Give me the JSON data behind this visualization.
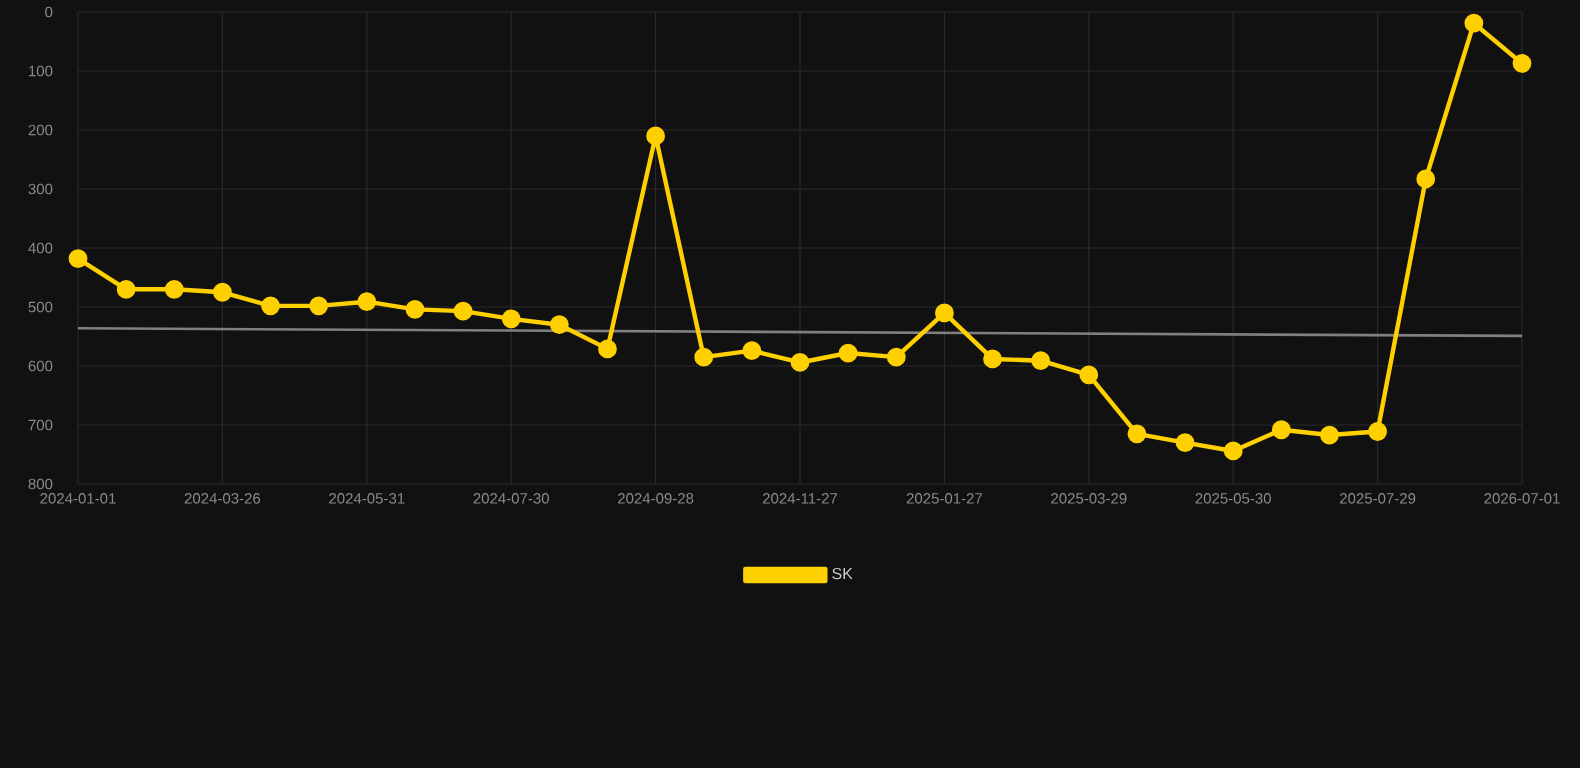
{
  "chart_data": {
    "type": "line",
    "categories": [
      "2024-01-01",
      null,
      null,
      "2024-03-26",
      null,
      null,
      "2024-05-31",
      null,
      null,
      "2024-07-30",
      null,
      null,
      "2024-09-28",
      null,
      null,
      "2024-11-27",
      null,
      null,
      "2025-01-27",
      null,
      null,
      "2025-03-29",
      null,
      null,
      "2025-05-30",
      null,
      null,
      "2025-07-29",
      null,
      null,
      "2026-07-01"
    ],
    "series": [
      {
        "name": "SK",
        "color": "#ffd000",
        "marker": "circle",
        "values": [
          418,
          470,
          470,
          475,
          498,
          498,
          491,
          504,
          507,
          520,
          530,
          571,
          210,
          585,
          574,
          594,
          578,
          585,
          510,
          588,
          591,
          615,
          715,
          730,
          744,
          708,
          717,
          711,
          283,
          19,
          87
        ]
      },
      {
        "type": "line",
        "color": "#808080",
        "marker": "none",
        "values": [
          536,
          null,
          null,
          null,
          null,
          null,
          null,
          null,
          null,
          null,
          null,
          null,
          null,
          null,
          null,
          null,
          null,
          null,
          null,
          null,
          null,
          null,
          null,
          null,
          null,
          null,
          null,
          null,
          null,
          null,
          549
        ]
      }
    ],
    "ylim": [
      800,
      0
    ],
    "yticks": [
      0,
      100,
      200,
      300,
      400,
      500,
      600,
      700,
      800
    ],
    "grid": true,
    "legend": "bottom"
  }
}
